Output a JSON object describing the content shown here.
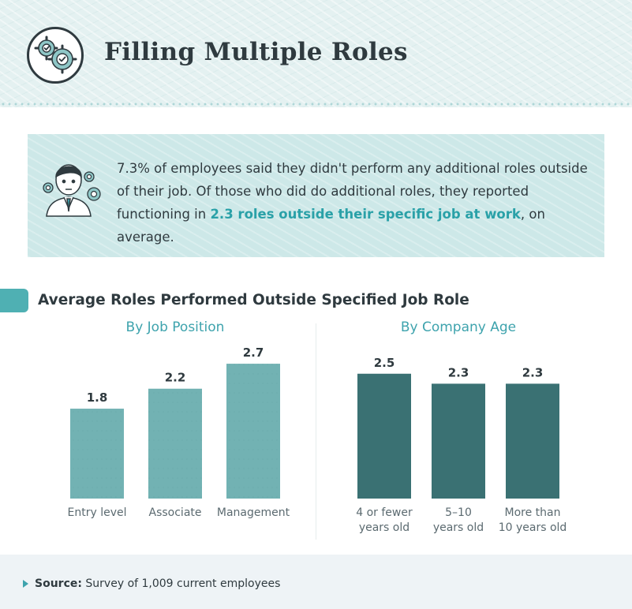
{
  "header": {
    "title": "Filling Multiple Roles",
    "icon": "gears-check-icon"
  },
  "callout": {
    "icon": "employee-gears-icon",
    "text_before": "7.3% of employees said they didn't perform any additional roles outside of their job. Of those who did do additional roles, they reported functioning in ",
    "highlight": "2.3 roles outside their specific job at work",
    "text_after": ", on average."
  },
  "section": {
    "title": "Average Roles Performed Outside Specified Job Role"
  },
  "chart_data": [
    {
      "type": "bar",
      "title": "By Job Position",
      "categories": [
        "Entry level",
        "Associate",
        "Management"
      ],
      "values": [
        1.8,
        2.2,
        2.7
      ],
      "labels": [
        "1.8",
        "2.2",
        "2.7"
      ],
      "color": "#72b2b3"
    },
    {
      "type": "bar",
      "title": "By Company Age",
      "categories": [
        "4 or fewer years old",
        "5–10 years old",
        "More than 10 years old"
      ],
      "category_lines": [
        [
          "4 or fewer",
          "years old"
        ],
        [
          "5–10",
          "years old"
        ],
        [
          "More than",
          "10 years old"
        ]
      ],
      "values": [
        2.5,
        2.3,
        2.3
      ],
      "labels": [
        "2.5",
        "2.3",
        "2.3"
      ],
      "color": "#3a7173"
    }
  ],
  "footer": {
    "label": "Source:",
    "text": " Survey of 1,009 current employees"
  }
}
